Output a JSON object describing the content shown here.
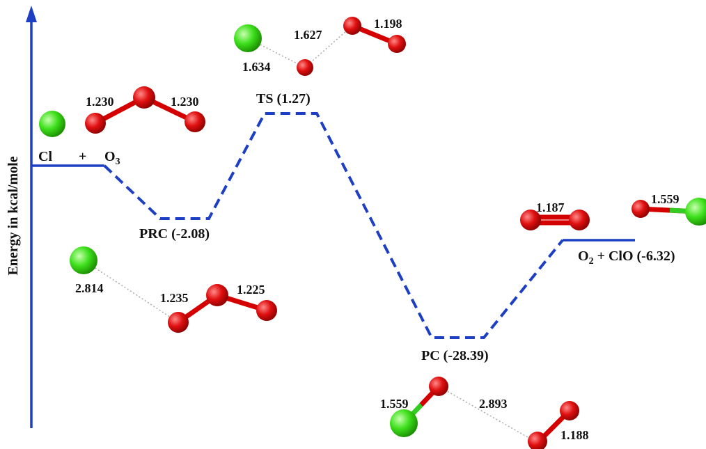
{
  "axis_label": "Energy in kcal/mole",
  "levels": {
    "reactants": {
      "a": "Cl",
      "plus": "+",
      "b": "O",
      "b_sub": "3"
    },
    "prc": "PRC (-2.08)",
    "ts": "TS (1.27)",
    "pc": "PC (-28.39)",
    "products": {
      "a": "O",
      "a_sub": "2",
      "rest": "+ ClO (-6.32)"
    }
  },
  "bond_lengths": {
    "reactants": [
      "1.230",
      "1.230"
    ],
    "ts": [
      "1.634",
      "1.627",
      "1.198"
    ],
    "prc": [
      "2.814",
      "1.235",
      "1.225"
    ],
    "pc": [
      "1.559",
      "2.893",
      "1.188"
    ],
    "products": [
      "1.187",
      "1.559"
    ]
  }
}
